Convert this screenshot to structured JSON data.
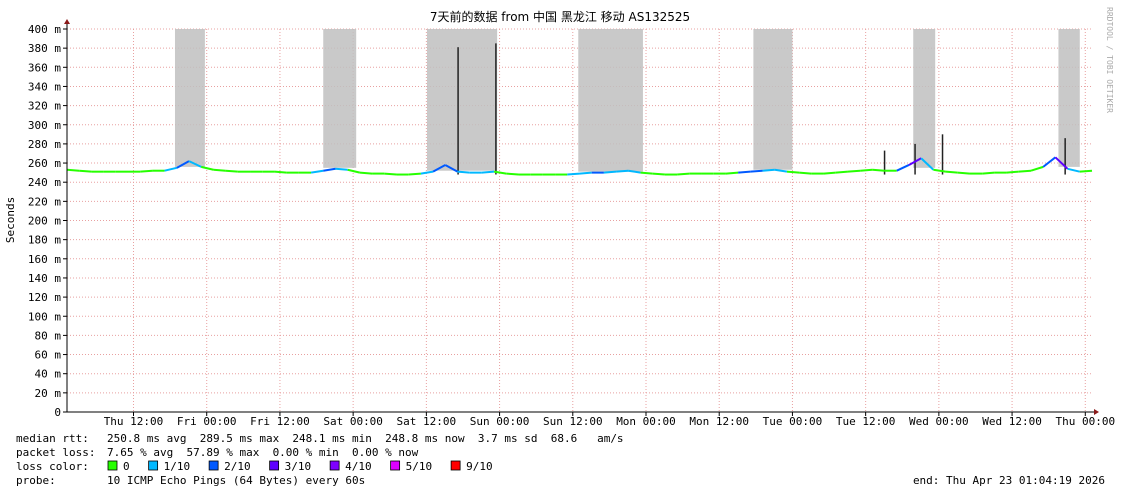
{
  "chart_data": {
    "type": "smokeping",
    "title": "7天前的数据 from 中国 黑龙江 移动 AS132525",
    "y_label": "Seconds",
    "watermark": "RRDTOOL / TOBI OETIKER",
    "xlim": [
      0,
      168
    ],
    "xticks": [
      {
        "value": 10.9,
        "label": "Thu 12:00"
      },
      {
        "value": 22.9,
        "label": "Fri 00:00"
      },
      {
        "value": 34.9,
        "label": "Fri 12:00"
      },
      {
        "value": 46.9,
        "label": "Sat 00:00"
      },
      {
        "value": 58.9,
        "label": "Sat 12:00"
      },
      {
        "value": 70.9,
        "label": "Sun 00:00"
      },
      {
        "value": 82.9,
        "label": "Sun 12:00"
      },
      {
        "value": 94.9,
        "label": "Mon 00:00"
      },
      {
        "value": 106.9,
        "label": "Mon 12:00"
      },
      {
        "value": 118.9,
        "label": "Tue 00:00"
      },
      {
        "value": 130.9,
        "label": "Tue 12:00"
      },
      {
        "value": 142.9,
        "label": "Wed 00:00"
      },
      {
        "value": 154.9,
        "label": "Wed 12:00"
      },
      {
        "value": 166.9,
        "label": "Thu 00:00"
      }
    ],
    "ylim": [
      0,
      400
    ],
    "yticks": [
      0,
      {
        "value": 20,
        "label": "20 m"
      },
      {
        "value": 40,
        "label": "40 m"
      },
      {
        "value": 60,
        "label": "60 m"
      },
      {
        "value": 80,
        "label": "80 m"
      },
      {
        "value": 100,
        "label": "100 m"
      },
      {
        "value": 120,
        "label": "120 m"
      },
      {
        "value": 140,
        "label": "140 m"
      },
      {
        "value": 160,
        "label": "160 m"
      },
      {
        "value": 180,
        "label": "180 m"
      },
      {
        "value": 200,
        "label": "200 m"
      },
      {
        "value": 220,
        "label": "220 m"
      },
      {
        "value": 240,
        "label": "240 m"
      },
      {
        "value": 260,
        "label": "260 m"
      },
      {
        "value": 280,
        "label": "280 m"
      },
      {
        "value": 300,
        "label": "300 m"
      },
      {
        "value": 320,
        "label": "320 m"
      },
      {
        "value": 340,
        "label": "340 m"
      },
      {
        "value": 360,
        "label": "360 m"
      },
      {
        "value": 380,
        "label": "380 m"
      },
      {
        "value": 400,
        "label": "400 m"
      }
    ],
    "grid": true,
    "grid_color": "#e8a0a0",
    "smoke_color": "#c0c0c0",
    "spike_color": "#222222",
    "smoke_bands": [
      {
        "x": [
          17.7,
          22.6
        ],
        "y": [
          256,
          400
        ]
      },
      {
        "x": [
          42,
          47.4
        ],
        "y": [
          255,
          400
        ]
      },
      {
        "x": [
          59,
          70.5
        ],
        "y": [
          252,
          400
        ]
      },
      {
        "x": [
          83.8,
          94.4
        ],
        "y": [
          251,
          400
        ]
      },
      {
        "x": [
          112.5,
          118.9
        ],
        "y": [
          253,
          400
        ]
      },
      {
        "x": [
          138.7,
          142.3
        ],
        "y": [
          255,
          400
        ]
      },
      {
        "x": [
          162.5,
          166
        ],
        "y": [
          256,
          400
        ]
      }
    ],
    "spikes": [
      {
        "x": 64.1,
        "y": 381
      },
      {
        "x": 70.3,
        "y": 385
      },
      {
        "x": 134,
        "y": 273
      },
      {
        "x": 139,
        "y": 280
      },
      {
        "x": 143.5,
        "y": 290
      },
      {
        "x": 163.6,
        "y": 286
      }
    ],
    "x": [
      0,
      2,
      4,
      6,
      8,
      10,
      12,
      14,
      16,
      18,
      20,
      22,
      24,
      26,
      28,
      30,
      32,
      34,
      36,
      38,
      40,
      42,
      44,
      46,
      48,
      50,
      52,
      54,
      56,
      58,
      60,
      62,
      64,
      66,
      68,
      70,
      72,
      74,
      76,
      78,
      80,
      82,
      84,
      86,
      88,
      90,
      92,
      94,
      96,
      98,
      100,
      102,
      104,
      106,
      108,
      110,
      112,
      114,
      116,
      118,
      120,
      122,
      124,
      126,
      128,
      130,
      132,
      134,
      136,
      138,
      140,
      142,
      144,
      146,
      148,
      150,
      152,
      154,
      156,
      158,
      160,
      162,
      164,
      166,
      168
    ],
    "series": [
      {
        "name": "median rtt",
        "values": [
          253,
          252,
          251,
          251,
          251,
          251,
          251,
          252,
          252,
          255,
          262,
          256,
          253,
          252,
          251,
          251,
          251,
          251,
          250,
          250,
          250,
          252,
          254,
          253,
          250,
          249,
          249,
          248,
          248,
          249,
          251,
          258,
          251,
          250,
          250,
          251,
          249,
          248,
          248,
          248,
          248,
          248,
          249,
          250,
          250,
          251,
          252,
          250,
          249,
          248,
          248,
          249,
          249,
          249,
          249,
          250,
          251,
          252,
          253,
          251,
          250,
          249,
          249,
          250,
          251,
          252,
          253,
          252,
          252,
          258,
          265,
          253,
          251,
          250,
          249,
          249,
          250,
          250,
          251,
          252,
          256,
          266,
          254,
          251,
          252
        ],
        "loss": [
          0,
          0,
          0,
          0,
          0,
          0,
          0,
          0,
          0,
          10,
          20,
          10,
          0,
          0,
          0,
          0,
          0,
          0,
          0,
          0,
          0,
          10,
          20,
          10,
          0,
          0,
          0,
          0,
          0,
          0,
          10,
          20,
          20,
          10,
          10,
          10,
          0,
          0,
          0,
          0,
          0,
          0,
          10,
          10,
          20,
          10,
          10,
          10,
          0,
          0,
          0,
          0,
          0,
          0,
          0,
          0,
          20,
          20,
          10,
          10,
          0,
          0,
          0,
          0,
          0,
          0,
          0,
          0,
          0,
          20,
          30,
          10,
          0,
          0,
          0,
          0,
          0,
          0,
          0,
          0,
          0,
          20,
          30,
          10,
          0
        ]
      }
    ],
    "loss_legend_title": "loss color:",
    "loss_legend": [
      {
        "name": "0",
        "loss": 0,
        "color": "#26ff00"
      },
      {
        "name": "1/10",
        "loss": 10,
        "color": "#00b8ff"
      },
      {
        "name": "2/10",
        "loss": 20,
        "color": "#0059ff"
      },
      {
        "name": "3/10",
        "loss": 30,
        "color": "#5e00ff"
      },
      {
        "name": "4/10",
        "loss": 40,
        "color": "#7e00ff"
      },
      {
        "name": "5/10",
        "loss": 50,
        "color": "#dd00ff"
      },
      {
        "name": "9/10",
        "loss": 90,
        "color": "#ff0000"
      }
    ],
    "stats": [
      {
        "label": "median rtt:",
        "text": "250.8 ms avg  289.5 ms max  248.1 ms min  248.8 ms now  3.7 ms sd  68.6   am/s"
      },
      {
        "label": "packet loss:",
        "text": "7.65 % avg  57.89 % max  0.00 % min  0.00 % now"
      }
    ],
    "probe": {
      "label": "probe:",
      "text": "10 ICMP Echo Pings (64 Bytes) every 60s"
    },
    "end": "end: Thu Apr 23 01:04:19 2026"
  }
}
